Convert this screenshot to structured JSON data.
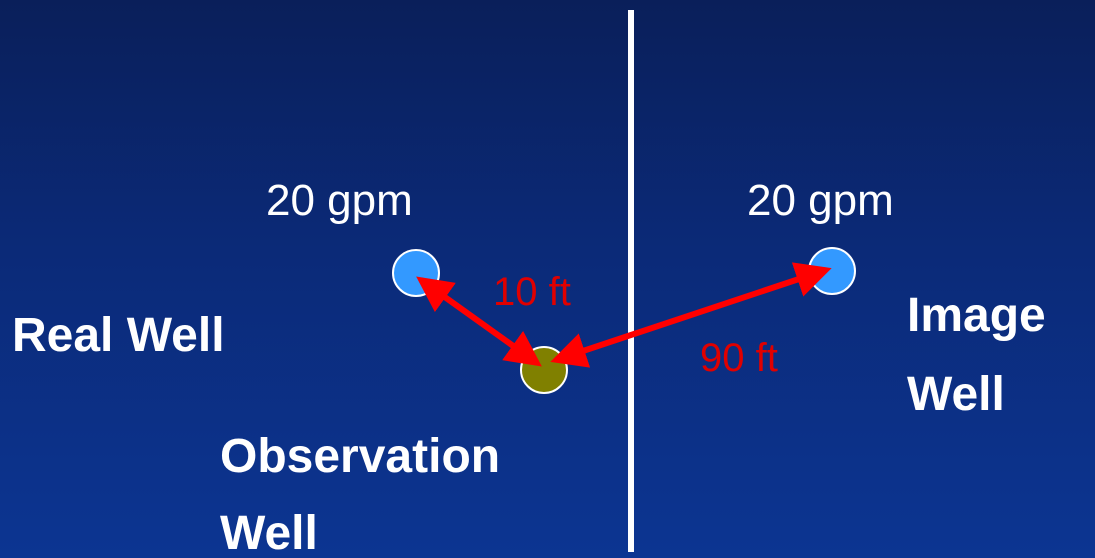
{
  "labels": {
    "real_rate": "20 gpm",
    "image_rate": "20 gpm",
    "real_distance": "10 ft",
    "image_distance": "90 ft",
    "real_well_name": "Real Well",
    "image_well_line1": "Image",
    "image_well_line2": "Well",
    "observation_line1": "Observation",
    "observation_line2": "Well"
  },
  "colors": {
    "background_top": "#0a1f5a",
    "background_bottom": "#0c3592",
    "pumping_well": "#3399ff",
    "observation_well": "#808000",
    "arrow": "#ff0000",
    "boundary_line": "#ffffff",
    "text": "#ffffff",
    "distance_text": "#e00000"
  }
}
